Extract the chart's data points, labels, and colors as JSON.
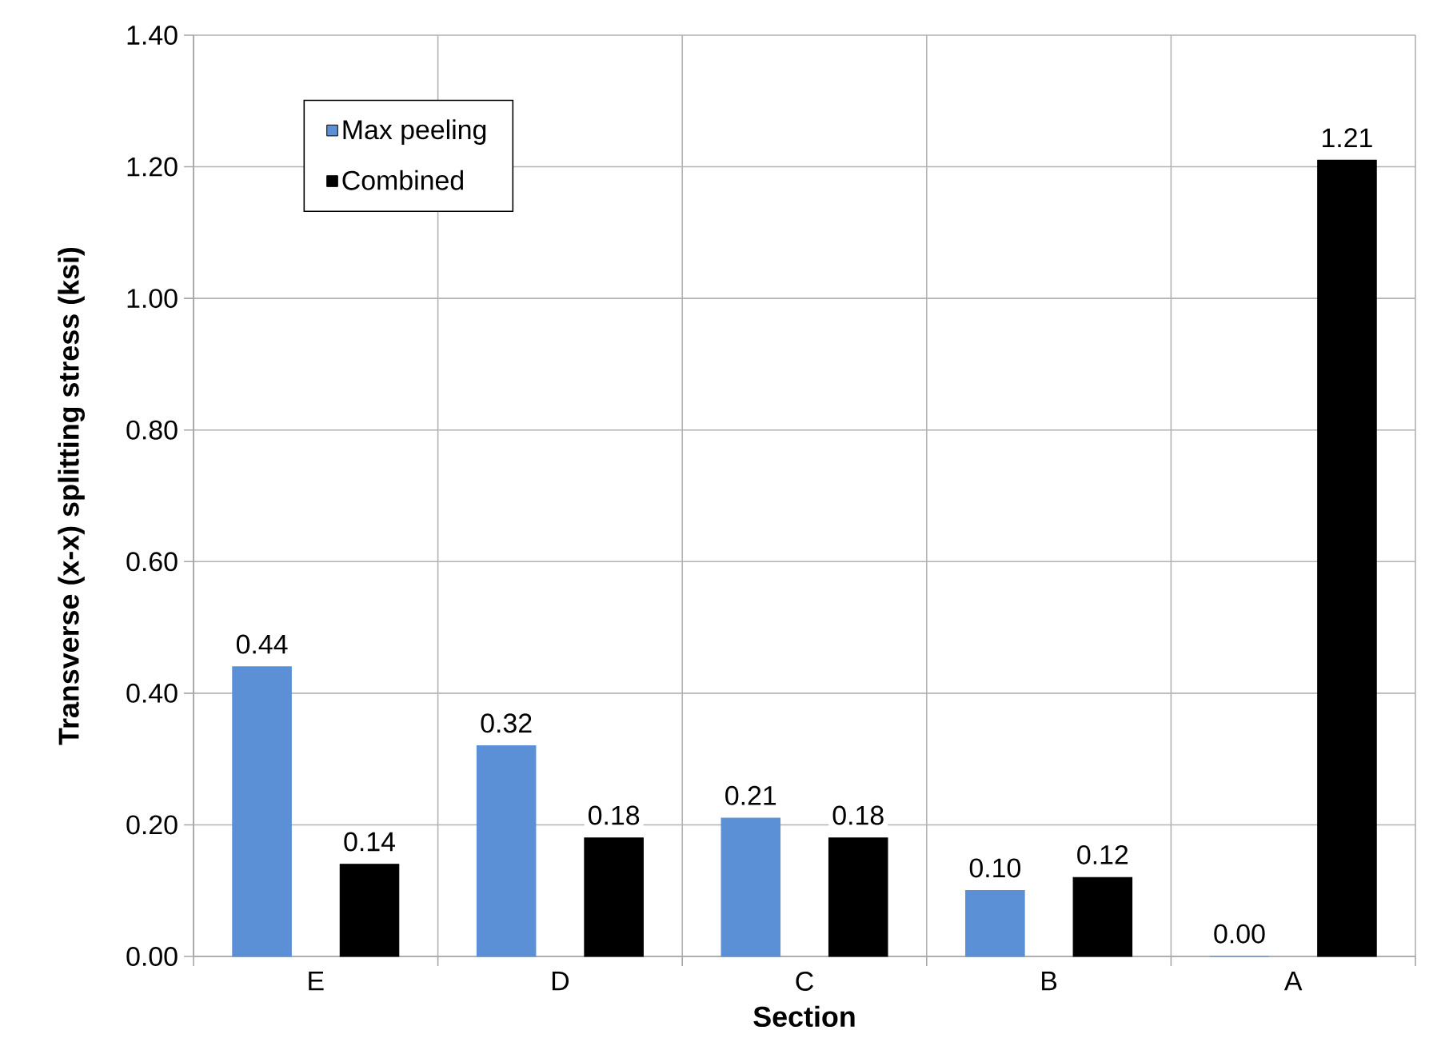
{
  "chart_data": {
    "type": "bar",
    "xlabel": "Section",
    "ylabel": "Transverse (x-x) splitting stress (ksi)",
    "categories": [
      "E",
      "D",
      "C",
      "B",
      "A"
    ],
    "series": [
      {
        "name": "Max peeling",
        "color": "#5b8fd6",
        "values": [
          0.44,
          0.32,
          0.21,
          0.1,
          0.0
        ],
        "value_labels": [
          "0.44",
          "0.32",
          "0.21",
          "0.10",
          "0.00"
        ]
      },
      {
        "name": "Combined",
        "color": "#000000",
        "values": [
          0.14,
          0.18,
          0.18,
          0.12,
          1.21
        ],
        "value_labels": [
          "0.14",
          "0.18",
          "0.18",
          "0.12",
          "1.21"
        ]
      }
    ],
    "ylim": [
      0,
      1.4
    ],
    "yticks": [
      {
        "value": 0,
        "label": "0.00"
      },
      {
        "value": 0.2,
        "label": "0.20"
      },
      {
        "value": 0.4,
        "label": "0.40"
      },
      {
        "value": 0.6,
        "label": "0.60"
      },
      {
        "value": 0.8,
        "label": "0.80"
      },
      {
        "value": 1.0,
        "label": "1.00"
      },
      {
        "value": 1.2,
        "label": "1.20"
      },
      {
        "value": 1.4,
        "label": "1.40"
      }
    ],
    "grid": true,
    "legend": "top left"
  }
}
